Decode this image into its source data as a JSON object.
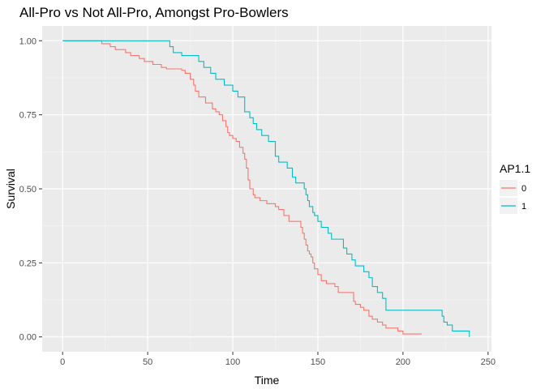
{
  "chart_data": {
    "type": "line",
    "step": true,
    "title": "All-Pro vs Not All-Pro, Amongst Pro-Bowlers",
    "xlabel": "Time",
    "ylabel": "Survival",
    "xlim": [
      -12,
      252
    ],
    "ylim": [
      -0.05,
      1.05
    ],
    "x_ticks": [
      0,
      50,
      100,
      150,
      200,
      250
    ],
    "x_tick_labels": [
      "0",
      "50",
      "100",
      "150",
      "200",
      "250"
    ],
    "y_ticks": [
      0,
      0.25,
      0.5,
      0.75,
      1
    ],
    "y_tick_labels": [
      "0.00",
      "0.25",
      "0.50",
      "0.75",
      "1.00"
    ],
    "grid": true,
    "legend": {
      "title": "AP1.1",
      "position": "right"
    },
    "series": [
      {
        "name": "0",
        "color": "#F8766D",
        "x": [
          0,
          23,
          28,
          31,
          37,
          40,
          45,
          48,
          53,
          58,
          61,
          70,
          72,
          75,
          77,
          78,
          80,
          84,
          88,
          90,
          92,
          94,
          96,
          97,
          98,
          100,
          102,
          104,
          106,
          107,
          108,
          109,
          110,
          112,
          113,
          116,
          120,
          125,
          127,
          130,
          133,
          140,
          141,
          142,
          143,
          144,
          145,
          146,
          147,
          148,
          150,
          152,
          155,
          160,
          162,
          171,
          172,
          175,
          177,
          180,
          182,
          185,
          188,
          190,
          197,
          200,
          211
        ],
        "y": [
          1.0,
          0.99,
          0.98,
          0.97,
          0.96,
          0.95,
          0.94,
          0.93,
          0.92,
          0.91,
          0.905,
          0.9,
          0.89,
          0.87,
          0.85,
          0.83,
          0.81,
          0.79,
          0.77,
          0.76,
          0.75,
          0.73,
          0.71,
          0.69,
          0.68,
          0.67,
          0.66,
          0.64,
          0.62,
          0.6,
          0.57,
          0.53,
          0.5,
          0.48,
          0.47,
          0.46,
          0.45,
          0.44,
          0.43,
          0.41,
          0.39,
          0.37,
          0.35,
          0.33,
          0.31,
          0.29,
          0.28,
          0.27,
          0.25,
          0.23,
          0.21,
          0.19,
          0.18,
          0.17,
          0.15,
          0.12,
          0.11,
          0.1,
          0.09,
          0.07,
          0.06,
          0.05,
          0.04,
          0.03,
          0.02,
          0.01,
          0.01
        ]
      },
      {
        "name": "1",
        "color": "#00BFC4",
        "x": [
          0,
          63,
          65,
          70,
          80,
          83,
          87,
          90,
          95,
          100,
          103,
          107,
          110,
          112,
          114,
          117,
          121,
          125,
          127,
          132,
          135,
          137,
          142,
          143,
          144,
          145,
          147,
          148,
          150,
          152,
          156,
          158,
          165,
          167,
          170,
          172,
          177,
          180,
          182,
          185,
          188,
          190,
          223,
          224,
          226,
          229,
          239
        ],
        "y": [
          1.0,
          0.98,
          0.96,
          0.95,
          0.93,
          0.91,
          0.89,
          0.87,
          0.85,
          0.83,
          0.81,
          0.76,
          0.74,
          0.72,
          0.7,
          0.68,
          0.66,
          0.61,
          0.59,
          0.57,
          0.54,
          0.52,
          0.5,
          0.48,
          0.46,
          0.44,
          0.42,
          0.41,
          0.39,
          0.37,
          0.35,
          0.33,
          0.3,
          0.28,
          0.26,
          0.24,
          0.22,
          0.2,
          0.17,
          0.15,
          0.13,
          0.09,
          0.07,
          0.05,
          0.04,
          0.02,
          0.0
        ]
      }
    ]
  }
}
